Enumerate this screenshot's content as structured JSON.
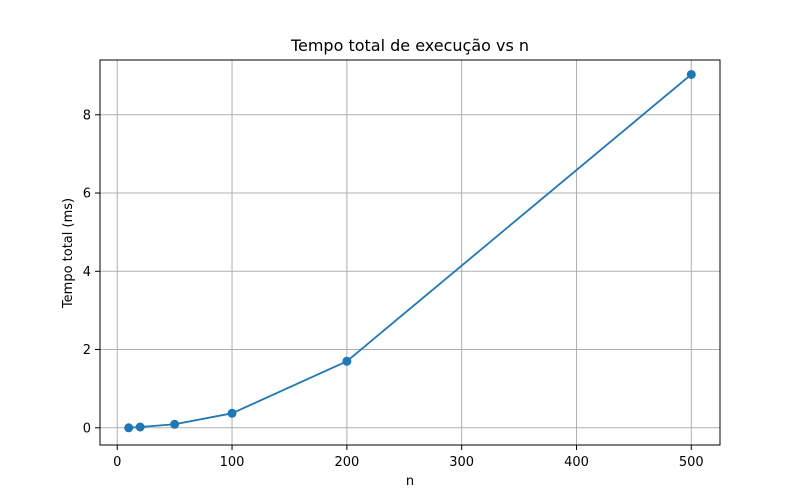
{
  "chart_data": {
    "type": "line",
    "title": "Tempo total de execução vs n",
    "xlabel": "n",
    "ylabel": "Tempo total (ms)",
    "xlim": [
      -15,
      525
    ],
    "ylim": [
      -0.44,
      9.4
    ],
    "xticks": [
      0,
      100,
      200,
      300,
      400,
      500
    ],
    "yticks": [
      0,
      2,
      4,
      6,
      8
    ],
    "grid": true,
    "series": [
      {
        "x": [
          10,
          20,
          50,
          100,
          200,
          500
        ],
        "y": [
          0.0,
          0.02,
          0.09,
          0.37,
          1.7,
          9.03
        ],
        "color": "#1f77b4",
        "marker": "circle"
      }
    ]
  }
}
